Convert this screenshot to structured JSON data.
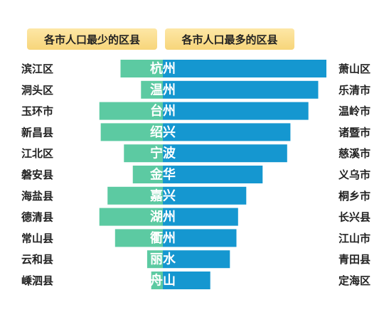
{
  "chart_data": {
    "type": "bar",
    "headers": {
      "left": "各市人口最少的区县",
      "right": "各市人口最多的区县"
    },
    "cities": [
      "杭州",
      "温州",
      "台州",
      "绍兴",
      "宁波",
      "金华",
      "嘉兴",
      "湖州",
      "衢州",
      "丽水",
      "舟山"
    ],
    "series": [
      {
        "name": "各市人口最少的区县",
        "labels": [
          "滨江区",
          "洞头区",
          "玉环市",
          "新昌县",
          "江北区",
          "磐安县",
          "海盐县",
          "德清县",
          "常山县",
          "云和县",
          "嵊泗县"
        ],
        "values": [
          0.62,
          0.32,
          0.93,
          0.91,
          0.57,
          0.44,
          0.81,
          0.93,
          0.7,
          0.23,
          0.17
        ]
      },
      {
        "name": "各市人口最多的区县",
        "labels": [
          "萧山区",
          "乐清市",
          "温岭市",
          "诸暨市",
          "慈溪市",
          "义乌市",
          "桐乡市",
          "长兴县",
          "江山市",
          "青田县",
          "定海区"
        ],
        "values": [
          1.0,
          0.95,
          0.89,
          0.78,
          0.76,
          0.61,
          0.51,
          0.46,
          0.45,
          0.41,
          0.29
        ]
      }
    ],
    "colors": {
      "left": "#5ccaa2",
      "right": "#1597d0"
    }
  }
}
